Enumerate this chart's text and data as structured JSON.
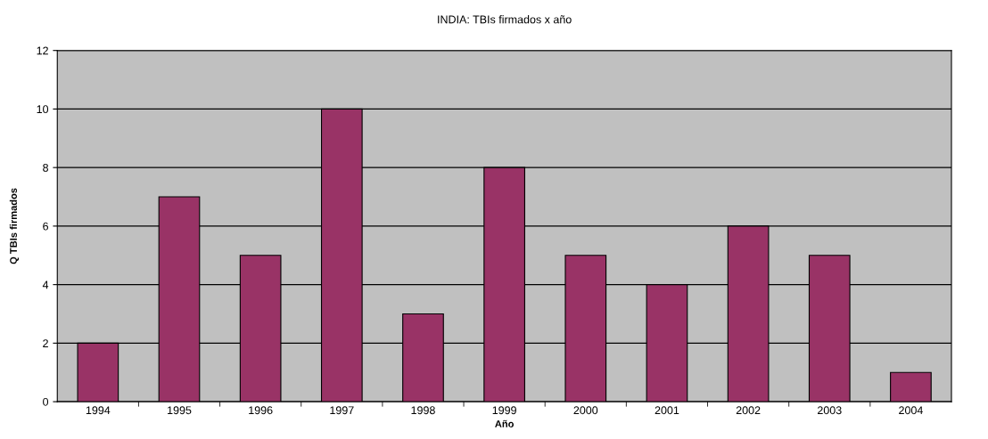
{
  "chart_data": {
    "type": "bar",
    "title": "INDIA: TBIs firmados x año",
    "xlabel": "Año",
    "ylabel": "Q TBIs firmados",
    "categories": [
      "1994",
      "1995",
      "1996",
      "1997",
      "1998",
      "1999",
      "2000",
      "2001",
      "2002",
      "2003",
      "2004"
    ],
    "values": [
      2,
      7,
      5,
      10,
      3,
      8,
      5,
      4,
      6,
      5,
      1
    ],
    "color": "#993366",
    "ylim": [
      0,
      12
    ],
    "yticks": [
      0,
      2,
      4,
      6,
      8,
      10,
      12
    ],
    "grid": "y",
    "legend": false
  }
}
